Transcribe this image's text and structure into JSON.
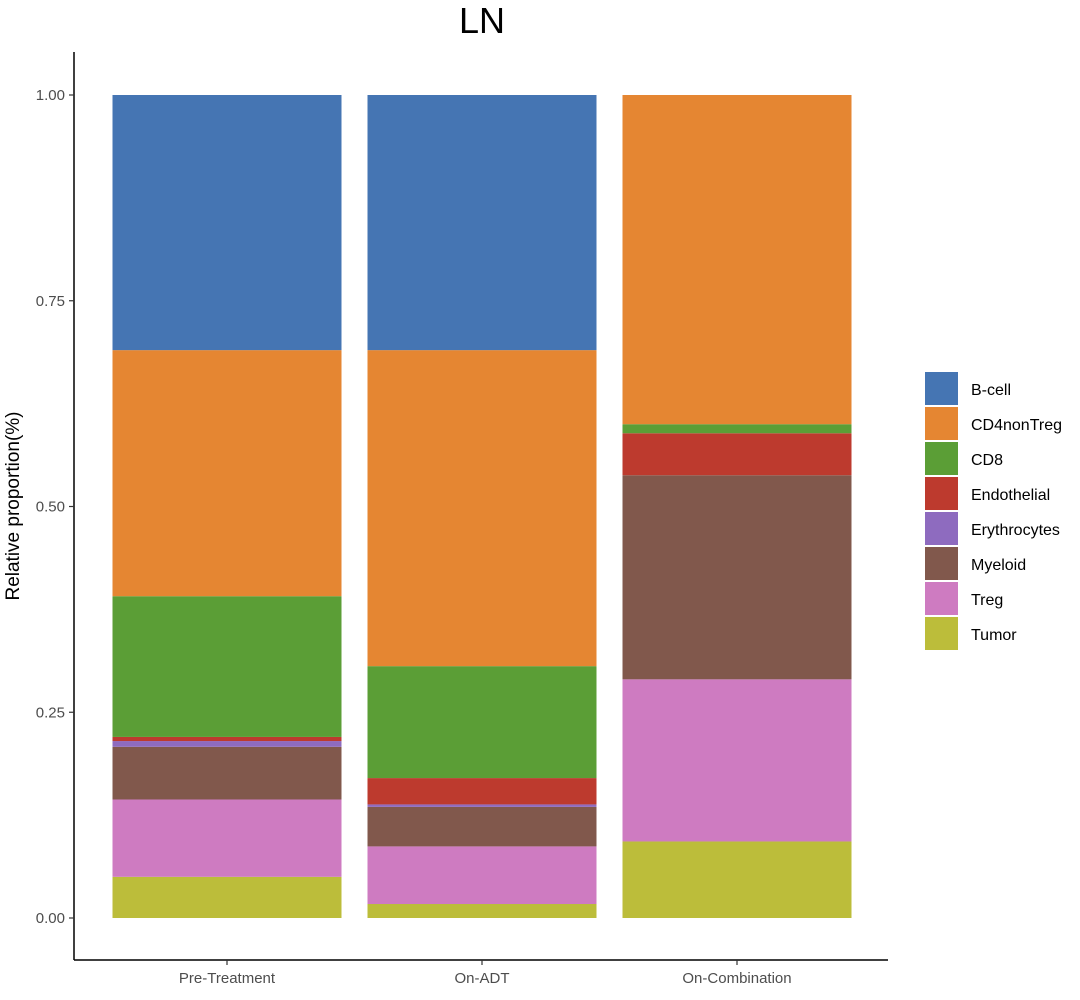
{
  "chart_data": {
    "type": "bar",
    "stacked": true,
    "title": "LN",
    "xlabel": "",
    "ylabel": "Relative proportion(%)",
    "ylim": [
      0,
      1.05
    ],
    "yticks": [
      "0.00",
      "0.25",
      "0.50",
      "0.75",
      "1.00"
    ],
    "categories": [
      "Pre-Treatment",
      "On-ADT",
      "On-Combination"
    ],
    "legend_position": "right",
    "grid": false,
    "series": [
      {
        "name": "Tumor",
        "color": "#BCBD3A",
        "values": [
          0.05,
          0.017,
          0.093
        ]
      },
      {
        "name": "Treg",
        "color": "#CE7BC1",
        "values": [
          0.094,
          0.07,
          0.197
        ]
      },
      {
        "name": "Myeloid",
        "color": "#81584C",
        "values": [
          0.064,
          0.048,
          0.248
        ]
      },
      {
        "name": "Erythrocytes",
        "color": "#8E6BBF",
        "values": [
          0.007,
          0.003,
          0.0
        ]
      },
      {
        "name": "Endothelial",
        "color": "#BD3A2E",
        "values": [
          0.005,
          0.032,
          0.051
        ]
      },
      {
        "name": "CD8",
        "color": "#5B9E36",
        "values": [
          0.171,
          0.136,
          0.011
        ]
      },
      {
        "name": "CD4nonTreg",
        "color": "#E58632",
        "values": [
          0.299,
          0.384,
          0.4
        ]
      },
      {
        "name": "B-cell",
        "color": "#4575B3",
        "values": [
          0.31,
          0.31,
          0.0
        ]
      }
    ],
    "legend_order": [
      "B-cell",
      "CD4nonTreg",
      "CD8",
      "Endothelial",
      "Erythrocytes",
      "Myeloid",
      "Treg",
      "Tumor"
    ]
  }
}
